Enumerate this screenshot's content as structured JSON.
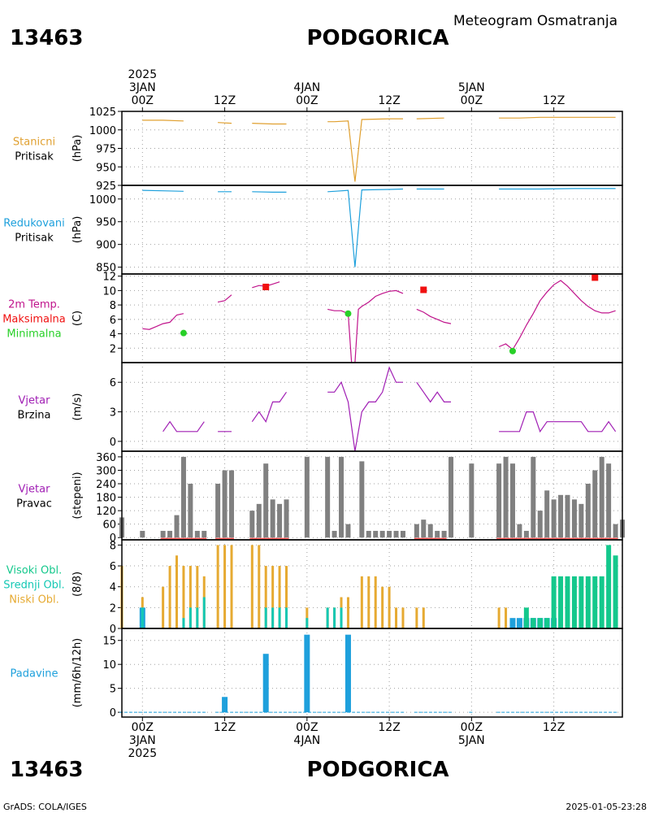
{
  "header": {
    "station_id": "13463",
    "station_name": "PODGORICA",
    "subtitle": "Meteogram Osmatranja"
  },
  "time_axis": {
    "ticks": [
      {
        "t": 0,
        "label": "00Z"
      },
      {
        "t": 12,
        "label": "12Z"
      },
      {
        "t": 24,
        "label": "00Z"
      },
      {
        "t": 36,
        "label": "12Z"
      },
      {
        "t": 48,
        "label": "00Z"
      },
      {
        "t": 60,
        "label": "12Z"
      }
    ],
    "top_dates": [
      {
        "t": 0,
        "lines": [
          "2025",
          "3JAN"
        ]
      },
      {
        "t": 24,
        "lines": [
          "4JAN"
        ]
      },
      {
        "t": 48,
        "lines": [
          "5JAN"
        ]
      }
    ],
    "bottom_dates": [
      {
        "t": 0,
        "lines": [
          "3JAN",
          "2025"
        ]
      },
      {
        "t": 24,
        "lines": [
          "4JAN"
        ]
      },
      {
        "t": 48,
        "lines": [
          "5JAN"
        ]
      }
    ],
    "range_hours": [
      -3,
      70
    ]
  },
  "footer": {
    "left": "GrADS: COLA/IGES",
    "right": "2025-01-05-23:28"
  },
  "colors": {
    "pressure_station": "#e0a030",
    "pressure_reduced": "#1ea0dc",
    "temperature": "#c0148c",
    "tmax": "#f01010",
    "tmin": "#28d028",
    "wind": "#a01eb4",
    "wind_dir_bar": "#808080",
    "cloud_high": "#14c88c",
    "cloud_mid": "#14c8b4",
    "cloud_low": "#e6aa32",
    "cloud_mid_blue": "#1ea0dc",
    "precip": "#1ea0dc",
    "grid": "#a0a0a0"
  },
  "chart_data": [
    {
      "type": "line",
      "panel": "stanicni_pritisak",
      "labels": [
        "Stanicni",
        "Pritisak"
      ],
      "ylabel": "(hPa)",
      "yticks": [
        925,
        950,
        975,
        1000,
        1025
      ],
      "ylim": [
        925,
        1025
      ],
      "series": [
        [
          [
            0,
            1013
          ],
          [
            3,
            1013
          ],
          [
            6,
            1012
          ]
        ],
        [
          [
            11,
            1010
          ],
          [
            13,
            1009
          ]
        ],
        [
          [
            16,
            1009
          ],
          [
            19,
            1008
          ],
          [
            21,
            1008
          ]
        ],
        [
          [
            27,
            1011
          ],
          [
            28,
            1011
          ],
          [
            30,
            1012
          ],
          [
            31,
            930
          ],
          [
            32,
            1014
          ],
          [
            36,
            1015
          ],
          [
            38,
            1015
          ]
        ],
        [
          [
            40,
            1015
          ],
          [
            44,
            1016
          ]
        ],
        [
          [
            52,
            1016
          ],
          [
            55,
            1016
          ],
          [
            58,
            1017
          ],
          [
            63,
            1017
          ],
          [
            67,
            1017
          ],
          [
            69,
            1017
          ]
        ]
      ]
    },
    {
      "type": "line",
      "panel": "redukovani_pritisak",
      "labels": [
        "Redukovani",
        "Pritisak"
      ],
      "ylabel": "(hPa)",
      "yticks": [
        850,
        900,
        950,
        1000
      ],
      "ylim": [
        835,
        1030
      ],
      "series": [
        [
          [
            0,
            1019
          ],
          [
            3,
            1018
          ],
          [
            6,
            1017
          ]
        ],
        [
          [
            11,
            1016
          ],
          [
            13,
            1016
          ]
        ],
        [
          [
            16,
            1016
          ],
          [
            19,
            1015
          ],
          [
            21,
            1015
          ]
        ],
        [
          [
            27,
            1016
          ],
          [
            28,
            1017
          ],
          [
            30,
            1019
          ],
          [
            31,
            850
          ],
          [
            32,
            1020
          ],
          [
            36,
            1021
          ],
          [
            38,
            1022
          ]
        ],
        [
          [
            40,
            1022
          ],
          [
            44,
            1022
          ]
        ],
        [
          [
            52,
            1022
          ],
          [
            55,
            1022
          ],
          [
            58,
            1022
          ],
          [
            63,
            1023
          ],
          [
            67,
            1023
          ],
          [
            69,
            1023
          ]
        ]
      ]
    },
    {
      "type": "line",
      "panel": "temperatura",
      "labels": [
        "2m Temp.",
        "Maksimalna",
        "Minimalna"
      ],
      "ylabel": "(C)",
      "yticks": [
        2,
        4,
        6,
        8,
        10,
        12
      ],
      "ylim": [
        0,
        12.3
      ],
      "series": [
        [
          [
            0,
            4.7
          ],
          [
            1,
            4.6
          ],
          [
            2,
            5.0
          ],
          [
            3,
            5.4
          ],
          [
            4,
            5.6
          ],
          [
            5,
            6.6
          ],
          [
            6,
            6.8
          ]
        ],
        [
          [
            11,
            8.4
          ],
          [
            12,
            8.6
          ],
          [
            13,
            9.4
          ]
        ],
        [
          [
            16,
            10.4
          ],
          [
            17,
            10.7
          ],
          [
            18,
            10.6
          ],
          [
            19,
            10.9
          ],
          [
            20,
            11.2
          ]
        ],
        [
          [
            27,
            7.4
          ],
          [
            28,
            7.2
          ],
          [
            29,
            7.2
          ],
          [
            30,
            6.8
          ],
          [
            30.5,
            0
          ],
          [
            31,
            0
          ],
          [
            31.5,
            7.4
          ],
          [
            32,
            7.8
          ],
          [
            33,
            8.4
          ],
          [
            34,
            9.2
          ],
          [
            35,
            9.6
          ],
          [
            36,
            9.9
          ],
          [
            37,
            10.0
          ],
          [
            38,
            9.6
          ]
        ],
        [
          [
            40,
            7.4
          ],
          [
            41,
            7.0
          ],
          [
            42,
            6.4
          ],
          [
            43,
            6.0
          ],
          [
            44,
            5.6
          ],
          [
            45,
            5.4
          ]
        ],
        [
          [
            52,
            2.2
          ],
          [
            53,
            2.6
          ],
          [
            54,
            1.8
          ],
          [
            55,
            3.4
          ],
          [
            56,
            5.2
          ],
          [
            57,
            6.8
          ],
          [
            58,
            8.6
          ],
          [
            59,
            9.8
          ],
          [
            60,
            10.8
          ],
          [
            61,
            11.4
          ],
          [
            62,
            10.6
          ],
          [
            63,
            9.6
          ],
          [
            64,
            8.6
          ],
          [
            65,
            7.8
          ],
          [
            66,
            7.2
          ],
          [
            67,
            6.9
          ],
          [
            68,
            6.9
          ],
          [
            69,
            7.2
          ]
        ]
      ],
      "tmax_points": [
        [
          18,
          10.5
        ],
        [
          41,
          10.1
        ],
        [
          66,
          11.8
        ]
      ],
      "tmin_points": [
        [
          6,
          4.1
        ],
        [
          30,
          6.8
        ],
        [
          54,
          1.6
        ]
      ]
    },
    {
      "type": "line",
      "panel": "vjetar_brzina",
      "labels": [
        "Vjetar",
        "Brzina"
      ],
      "ylabel": "(m/s)",
      "yticks": [
        0,
        3,
        6
      ],
      "ylim": [
        -1,
        8
      ],
      "series": [
        [
          [
            3,
            1
          ],
          [
            4,
            2
          ],
          [
            5,
            1
          ],
          [
            6,
            1
          ],
          [
            7,
            1
          ],
          [
            8,
            1
          ],
          [
            9,
            2
          ]
        ],
        [
          [
            11,
            1
          ],
          [
            13,
            1
          ]
        ],
        [
          [
            16,
            2
          ],
          [
            17,
            3
          ],
          [
            18,
            2
          ],
          [
            19,
            4
          ],
          [
            20,
            4
          ],
          [
            21,
            5
          ]
        ],
        [
          [
            27,
            5
          ],
          [
            28,
            5
          ],
          [
            29,
            6
          ],
          [
            30,
            4
          ],
          [
            31,
            -1
          ],
          [
            32,
            3
          ],
          [
            33,
            4
          ],
          [
            34,
            4
          ],
          [
            35,
            5
          ],
          [
            36,
            7.5
          ],
          [
            37,
            6
          ],
          [
            38,
            6
          ]
        ],
        [
          [
            40,
            6
          ],
          [
            41,
            5
          ],
          [
            42,
            4
          ],
          [
            43,
            5
          ],
          [
            44,
            4
          ],
          [
            45,
            4
          ]
        ],
        [
          [
            52,
            1
          ],
          [
            54,
            1
          ],
          [
            55,
            1
          ],
          [
            56,
            3
          ],
          [
            57,
            3
          ],
          [
            58,
            1
          ],
          [
            59,
            2
          ],
          [
            60,
            2
          ],
          [
            61,
            2
          ],
          [
            62,
            2
          ],
          [
            63,
            2
          ],
          [
            64,
            2
          ],
          [
            65,
            1
          ],
          [
            66,
            1
          ],
          [
            67,
            1
          ],
          [
            68,
            2
          ],
          [
            69,
            1
          ]
        ]
      ]
    },
    {
      "type": "bar",
      "panel": "vjetar_pravac",
      "labels": [
        "Vjetar",
        "Pravac"
      ],
      "ylabel": "(stepeni)",
      "yticks": [
        0,
        60,
        120,
        180,
        240,
        300,
        360
      ],
      "ylim": [
        -10,
        385
      ],
      "bars": [
        [
          -3,
          90
        ],
        [
          0,
          30
        ],
        [
          3,
          30
        ],
        [
          4,
          30
        ],
        [
          5,
          100
        ],
        [
          6,
          360
        ],
        [
          7,
          240
        ],
        [
          8,
          30
        ],
        [
          9,
          30
        ],
        [
          11,
          240
        ],
        [
          12,
          300
        ],
        [
          13,
          300
        ],
        [
          16,
          120
        ],
        [
          17,
          150
        ],
        [
          18,
          330
        ],
        [
          19,
          170
        ],
        [
          20,
          150
        ],
        [
          21,
          170
        ],
        [
          24,
          360
        ],
        [
          27,
          360
        ],
        [
          28,
          30
        ],
        [
          29,
          360
        ],
        [
          30,
          60
        ],
        [
          32,
          340
        ],
        [
          33,
          30
        ],
        [
          34,
          30
        ],
        [
          35,
          30
        ],
        [
          36,
          30
        ],
        [
          37,
          30
        ],
        [
          38,
          30
        ],
        [
          40,
          60
        ],
        [
          41,
          80
        ],
        [
          42,
          60
        ],
        [
          43,
          30
        ],
        [
          44,
          30
        ],
        [
          45,
          360
        ],
        [
          48,
          330
        ],
        [
          52,
          330
        ],
        [
          53,
          360
        ],
        [
          54,
          330
        ],
        [
          55,
          60
        ],
        [
          56,
          30
        ],
        [
          57,
          360
        ],
        [
          58,
          120
        ],
        [
          59,
          210
        ],
        [
          60,
          170
        ],
        [
          61,
          190
        ],
        [
          62,
          190
        ],
        [
          63,
          170
        ],
        [
          64,
          150
        ],
        [
          65,
          240
        ],
        [
          66,
          300
        ],
        [
          67,
          360
        ],
        [
          68,
          330
        ],
        [
          69,
          60
        ],
        [
          70,
          80
        ]
      ],
      "calm_segments": [
        [
          3,
          9
        ],
        [
          11,
          13
        ],
        [
          16,
          21
        ],
        [
          40,
          44
        ],
        [
          52,
          69
        ]
      ]
    },
    {
      "type": "bar",
      "panel": "oblacnost",
      "labels": [
        "Visoki Obl.",
        "Srednji Obl.",
        "Niski Obl."
      ],
      "ylabel": "(8/8)",
      "yticks": [
        0,
        2,
        4,
        6,
        8
      ],
      "ylim": [
        0,
        8.5
      ],
      "low_bars": [
        [
          -3,
          6
        ],
        [
          0,
          3
        ],
        [
          3,
          4
        ],
        [
          4,
          6
        ],
        [
          5,
          7
        ],
        [
          6,
          6
        ],
        [
          7,
          6
        ],
        [
          8,
          6
        ],
        [
          9,
          5
        ],
        [
          11,
          8
        ],
        [
          12,
          8
        ],
        [
          13,
          8
        ],
        [
          16,
          8
        ],
        [
          17,
          8
        ],
        [
          18,
          6
        ],
        [
          19,
          6
        ],
        [
          20,
          6
        ],
        [
          21,
          6
        ],
        [
          24,
          2
        ],
        [
          27,
          2
        ],
        [
          28,
          2
        ],
        [
          29,
          3
        ],
        [
          30,
          3
        ],
        [
          32,
          5
        ],
        [
          33,
          5
        ],
        [
          34,
          5
        ],
        [
          35,
          4
        ],
        [
          36,
          4
        ],
        [
          37,
          2
        ],
        [
          38,
          2
        ],
        [
          40,
          2
        ],
        [
          41,
          2
        ],
        [
          52,
          2
        ],
        [
          53,
          2
        ]
      ],
      "mid_bars": [
        [
          0,
          2
        ],
        [
          6,
          1
        ],
        [
          7,
          2
        ],
        [
          8,
          2
        ],
        [
          9,
          3
        ],
        [
          18,
          2
        ],
        [
          19,
          2
        ],
        [
          20,
          2
        ],
        [
          21,
          2
        ],
        [
          24,
          1
        ],
        [
          27,
          2
        ],
        [
          28,
          2
        ],
        [
          29,
          2
        ]
      ],
      "blue_bars": [
        [
          0,
          2
        ],
        [
          54,
          1
        ],
        [
          55,
          1
        ],
        [
          56,
          1
        ],
        [
          57,
          1
        ],
        [
          58,
          1
        ],
        [
          59,
          1
        ],
        [
          60,
          1
        ]
      ],
      "high_bars": [
        [
          56,
          2
        ],
        [
          57,
          1
        ],
        [
          58,
          1
        ],
        [
          59,
          1
        ],
        [
          60,
          5
        ],
        [
          61,
          5
        ],
        [
          62,
          5
        ],
        [
          63,
          5
        ],
        [
          64,
          5
        ],
        [
          65,
          5
        ],
        [
          66,
          5
        ],
        [
          67,
          5
        ],
        [
          68,
          8
        ],
        [
          69,
          7
        ]
      ]
    },
    {
      "type": "bar",
      "panel": "padavine",
      "labels": [
        "Padavine"
      ],
      "ylabel": "(mm/6h/12h)",
      "yticks": [
        0,
        5,
        10,
        15
      ],
      "ylim": [
        -1,
        17.5
      ],
      "bars": [
        [
          12,
          3.2
        ],
        [
          18,
          12.2
        ],
        [
          24,
          16.2
        ],
        [
          30,
          16.2
        ]
      ],
      "baseline_segments": [
        [
          -3,
          9
        ],
        [
          11,
          38
        ],
        [
          40,
          45
        ],
        [
          48,
          48
        ],
        [
          52,
          69
        ]
      ]
    }
  ]
}
